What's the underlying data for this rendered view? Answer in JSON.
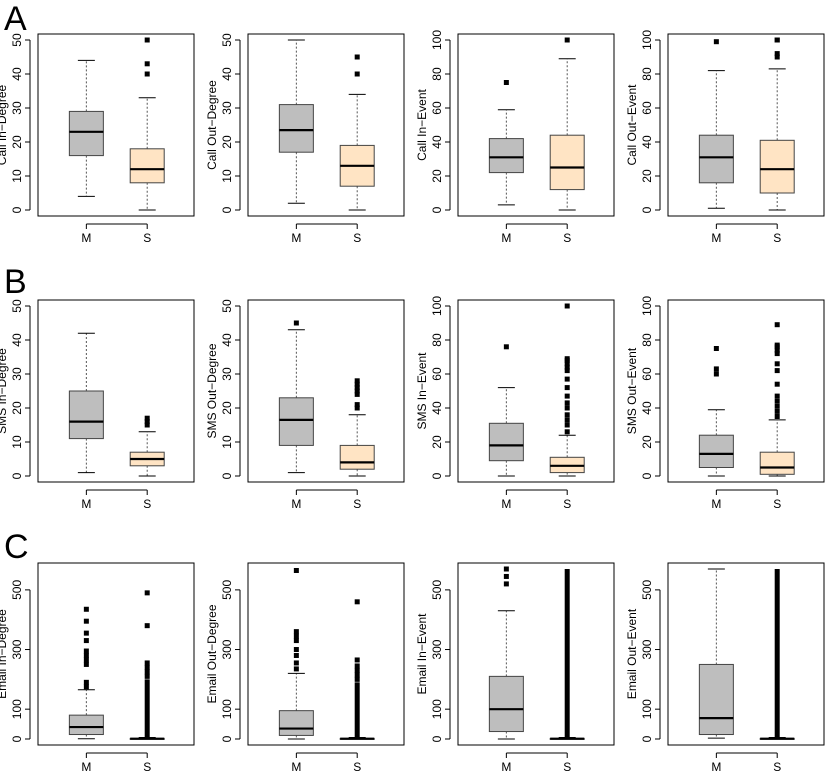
{
  "figure": {
    "groups": [
      "M",
      "S"
    ],
    "fill_M": "#bebebe",
    "fill_S": "#ffe4c4",
    "row_letters": [
      "A",
      "B",
      "C"
    ]
  },
  "chart_data": [
    {
      "type": "boxplot",
      "ylabel": "Call In−Degree",
      "ylim": [
        0,
        50
      ],
      "yticks": [
        0,
        10,
        20,
        30,
        40,
        50
      ],
      "categories": [
        "M",
        "S"
      ],
      "boxes": [
        {
          "name": "M",
          "whisker_low": 4,
          "q1": 16,
          "median": 23,
          "q3": 29,
          "whisker_high": 44,
          "outliers": []
        },
        {
          "name": "S",
          "whisker_low": 0,
          "q1": 8,
          "median": 12,
          "q3": 18,
          "whisker_high": 33,
          "outliers": [
            40,
            43,
            50
          ]
        }
      ]
    },
    {
      "type": "boxplot",
      "ylabel": "Call Out−Degree",
      "ylim": [
        0,
        50
      ],
      "yticks": [
        0,
        10,
        20,
        30,
        40,
        50
      ],
      "categories": [
        "M",
        "S"
      ],
      "boxes": [
        {
          "name": "M",
          "whisker_low": 2,
          "q1": 17,
          "median": 23.5,
          "q3": 31,
          "whisker_high": 51,
          "outliers": []
        },
        {
          "name": "S",
          "whisker_low": 0,
          "q1": 7,
          "median": 13,
          "q3": 19,
          "whisker_high": 34,
          "outliers": [
            40,
            45
          ]
        }
      ]
    },
    {
      "type": "boxplot",
      "ylabel": "Call In−Event",
      "ylim": [
        0,
        100
      ],
      "yticks": [
        0,
        20,
        40,
        60,
        80,
        100
      ],
      "categories": [
        "M",
        "S"
      ],
      "boxes": [
        {
          "name": "M",
          "whisker_low": 3,
          "q1": 22,
          "median": 31,
          "q3": 42,
          "whisker_high": 59,
          "outliers": [
            75
          ]
        },
        {
          "name": "S",
          "whisker_low": 0,
          "q1": 12,
          "median": 25,
          "q3": 44,
          "whisker_high": 89,
          "outliers": [
            100
          ]
        }
      ]
    },
    {
      "type": "boxplot",
      "ylabel": "Call Out−Event",
      "ylim": [
        0,
        100
      ],
      "yticks": [
        0,
        20,
        40,
        60,
        80,
        100
      ],
      "categories": [
        "M",
        "S"
      ],
      "boxes": [
        {
          "name": "M",
          "whisker_low": 1,
          "q1": 16,
          "median": 31,
          "q3": 44,
          "whisker_high": 82,
          "outliers": [
            99
          ]
        },
        {
          "name": "S",
          "whisker_low": 0,
          "q1": 10,
          "median": 24,
          "q3": 41,
          "whisker_high": 83,
          "outliers": [
            90,
            92,
            102,
            103
          ]
        }
      ]
    },
    {
      "type": "boxplot",
      "ylabel": "SMS In−Degree",
      "ylim": [
        0,
        50
      ],
      "yticks": [
        0,
        10,
        20,
        30,
        40,
        50
      ],
      "categories": [
        "M",
        "S"
      ],
      "boxes": [
        {
          "name": "M",
          "whisker_low": 1,
          "q1": 11,
          "median": 16,
          "q3": 25,
          "whisker_high": 42,
          "outliers": []
        },
        {
          "name": "S",
          "whisker_low": 0,
          "q1": 3,
          "median": 5,
          "q3": 7,
          "whisker_high": 13,
          "outliers": [
            15,
            16,
            17
          ]
        }
      ]
    },
    {
      "type": "boxplot",
      "ylabel": "SMS Out−Degree",
      "ylim": [
        0,
        50
      ],
      "yticks": [
        0,
        10,
        20,
        30,
        40,
        50
      ],
      "categories": [
        "M",
        "S"
      ],
      "boxes": [
        {
          "name": "M",
          "whisker_low": 1,
          "q1": 9,
          "median": 16.5,
          "q3": 23,
          "whisker_high": 43,
          "outliers": [
            45
          ]
        },
        {
          "name": "S",
          "whisker_low": 0,
          "q1": 2,
          "median": 4,
          "q3": 9,
          "whisker_high": 18,
          "outliers": [
            20,
            21,
            24,
            25,
            26,
            27,
            28
          ]
        }
      ]
    },
    {
      "type": "boxplot",
      "ylabel": "SMS In−Event",
      "ylim": [
        0,
        100
      ],
      "yticks": [
        0,
        20,
        40,
        60,
        80,
        100
      ],
      "categories": [
        "M",
        "S"
      ],
      "boxes": [
        {
          "name": "M",
          "whisker_low": 0,
          "q1": 9,
          "median": 18,
          "q3": 31,
          "whisker_high": 52,
          "outliers": [
            76
          ]
        },
        {
          "name": "S",
          "whisker_low": 0,
          "q1": 2,
          "median": 6,
          "q3": 11,
          "whisker_high": 24,
          "outliers": [
            26,
            30,
            33,
            36,
            40,
            43,
            47,
            52,
            57,
            62,
            64,
            66,
            68,
            69,
            103
          ]
        }
      ]
    },
    {
      "type": "boxplot",
      "ylabel": "SMS Out−Event",
      "ylim": [
        0,
        100
      ],
      "yticks": [
        0,
        20,
        40,
        60,
        80,
        100
      ],
      "categories": [
        "M",
        "S"
      ],
      "boxes": [
        {
          "name": "M",
          "whisker_low": 0,
          "q1": 5,
          "median": 13,
          "q3": 24,
          "whisker_high": 39,
          "outliers": [
            60,
            63,
            75
          ]
        },
        {
          "name": "S",
          "whisker_low": 0,
          "q1": 1,
          "median": 5,
          "q3": 14,
          "whisker_high": 33,
          "outliers": [
            35,
            38,
            41,
            44,
            47,
            54,
            62,
            66,
            72,
            74,
            76,
            77,
            89
          ]
        }
      ]
    },
    {
      "type": "boxplot",
      "ylabel": "Email In−Degree",
      "ylim": [
        0,
        570
      ],
      "yticks": [
        0,
        100,
        300,
        500
      ],
      "categories": [
        "M",
        "S"
      ],
      "boxes": [
        {
          "name": "M",
          "whisker_low": 1,
          "q1": 15,
          "median": 40,
          "q3": 80,
          "whisker_high": 165,
          "outliers": [
            175,
            190,
            250,
            265,
            280,
            295,
            330,
            355,
            395,
            435
          ]
        },
        {
          "name": "S",
          "whisker_low": 0,
          "q1": 0,
          "median": 1,
          "q3": 2,
          "whisker_high": 5,
          "outlier_band": [
            5,
            200
          ],
          "outliers": [
            210,
            225,
            240,
            255,
            380,
            490
          ]
        }
      ]
    },
    {
      "type": "boxplot",
      "ylabel": "Email Out−Degree",
      "ylim": [
        0,
        570
      ],
      "yticks": [
        0,
        100,
        300,
        500
      ],
      "categories": [
        "M",
        "S"
      ],
      "boxes": [
        {
          "name": "M",
          "whisker_low": 0,
          "q1": 12,
          "median": 35,
          "q3": 95,
          "whisker_high": 220,
          "outliers": [
            235,
            255,
            280,
            300,
            330,
            345,
            360,
            565
          ]
        },
        {
          "name": "S",
          "whisker_low": 0,
          "q1": 0,
          "median": 1,
          "q3": 2,
          "whisker_high": 5,
          "outlier_band": [
            5,
            190
          ],
          "outliers": [
            200,
            215,
            230,
            245,
            265,
            460
          ]
        }
      ]
    },
    {
      "type": "boxplot",
      "ylabel": "Email In−Event",
      "ylim": [
        0,
        570
      ],
      "yticks": [
        0,
        100,
        300,
        500
      ],
      "categories": [
        "M",
        "S"
      ],
      "boxes": [
        {
          "name": "M",
          "whisker_low": 0,
          "q1": 25,
          "median": 100,
          "q3": 210,
          "whisker_high": 430,
          "outliers": [
            520,
            545,
            570
          ]
        },
        {
          "name": "S",
          "whisker_low": 0,
          "q1": 0,
          "median": 1,
          "q3": 2,
          "whisker_high": 5,
          "outlier_band": [
            5,
            570
          ],
          "outliers": []
        }
      ]
    },
    {
      "type": "boxplot",
      "ylabel": "Email Out−Event",
      "ylim": [
        0,
        570
      ],
      "yticks": [
        0,
        100,
        300,
        500
      ],
      "categories": [
        "M",
        "S"
      ],
      "boxes": [
        {
          "name": "M",
          "whisker_low": 3,
          "q1": 15,
          "median": 70,
          "q3": 250,
          "whisker_high": 570,
          "outliers": []
        },
        {
          "name": "S",
          "whisker_low": 0,
          "q1": 0,
          "median": 1,
          "q3": 2,
          "whisker_high": 5,
          "outlier_band": [
            5,
            570
          ],
          "outliers": []
        }
      ]
    }
  ]
}
